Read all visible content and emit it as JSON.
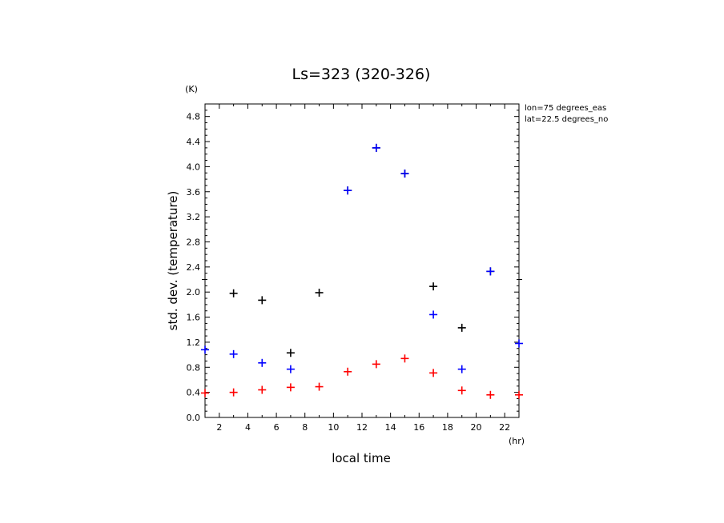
{
  "chart_data": {
    "type": "scatter",
    "title": "Ls=323 (320-326)",
    "xlabel": "local time",
    "ylabel": "std. dev. (temperature)",
    "x_unit": "(hr)",
    "y_unit": "(K)",
    "xlim": [
      1,
      23
    ],
    "ylim": [
      0,
      5
    ],
    "x_ticks": [
      2,
      4,
      6,
      8,
      10,
      12,
      14,
      16,
      18,
      20,
      22
    ],
    "y_ticks": [
      "0.0",
      "0.4",
      "0.8",
      "1.2",
      "1.6",
      "2.0",
      "2.4",
      "2.8",
      "3.2",
      "3.6",
      "4.0",
      "4.4",
      "4.8"
    ],
    "annotations": [
      "lon=75 degrees_eas",
      "lat=22.5 degrees_no"
    ],
    "series": [
      {
        "color": "#000000",
        "x": [
          3,
          5,
          7,
          9,
          11,
          13,
          15,
          17,
          19,
          21
        ],
        "y": [
          1.98,
          1.87,
          1.03,
          1.99,
          3.62,
          4.3,
          3.89,
          2.09,
          1.43,
          2.33
        ]
      },
      {
        "color": "#0000ff",
        "x": [
          1,
          3,
          5,
          7,
          11,
          13,
          15,
          17,
          19,
          21,
          23
        ],
        "y": [
          1.08,
          1.01,
          0.87,
          0.77,
          3.62,
          4.3,
          3.89,
          1.64,
          0.77,
          2.33,
          1.18
        ]
      },
      {
        "color": "#ff0000",
        "x": [
          1,
          3,
          5,
          7,
          9,
          11,
          13,
          15,
          17,
          19,
          21,
          23
        ],
        "y": [
          0.39,
          0.4,
          0.44,
          0.48,
          0.49,
          0.73,
          0.85,
          0.94,
          0.71,
          0.43,
          0.36,
          0.36
        ]
      }
    ]
  }
}
